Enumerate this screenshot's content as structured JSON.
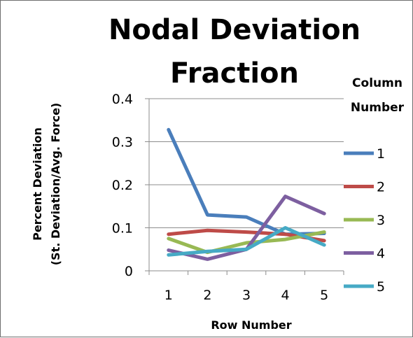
{
  "chart_data": {
    "type": "line",
    "title": [
      "Nodal Deviation",
      "Fraction"
    ],
    "xlabel": "Row Number",
    "ylabel": [
      "Percent Deviation",
      "(St. Deviation/Avg. Force)"
    ],
    "x": [
      "1",
      "2",
      "3",
      "4",
      "5"
    ],
    "yticks": [
      "0",
      "0.1",
      "0.2",
      "0.3",
      "0.4"
    ],
    "ylim": [
      0,
      0.4
    ],
    "grid": "horizontal",
    "legend_title": [
      "Column",
      "Number"
    ],
    "legend_position": "right",
    "series": [
      {
        "name": "1",
        "color": "#4a7ebb",
        "values": [
          0.328,
          0.13,
          0.125,
          0.085,
          0.087
        ]
      },
      {
        "name": "2",
        "color": "#be4b48",
        "values": [
          0.085,
          0.094,
          0.09,
          0.085,
          0.07
        ]
      },
      {
        "name": "3",
        "color": "#98b954",
        "values": [
          0.075,
          0.043,
          0.065,
          0.073,
          0.09
        ]
      },
      {
        "name": "4",
        "color": "#7d5fa0",
        "values": [
          0.048,
          0.027,
          0.05,
          0.173,
          0.133
        ]
      },
      {
        "name": "5",
        "color": "#46aac5",
        "values": [
          0.037,
          0.045,
          0.05,
          0.1,
          0.06
        ]
      }
    ]
  }
}
